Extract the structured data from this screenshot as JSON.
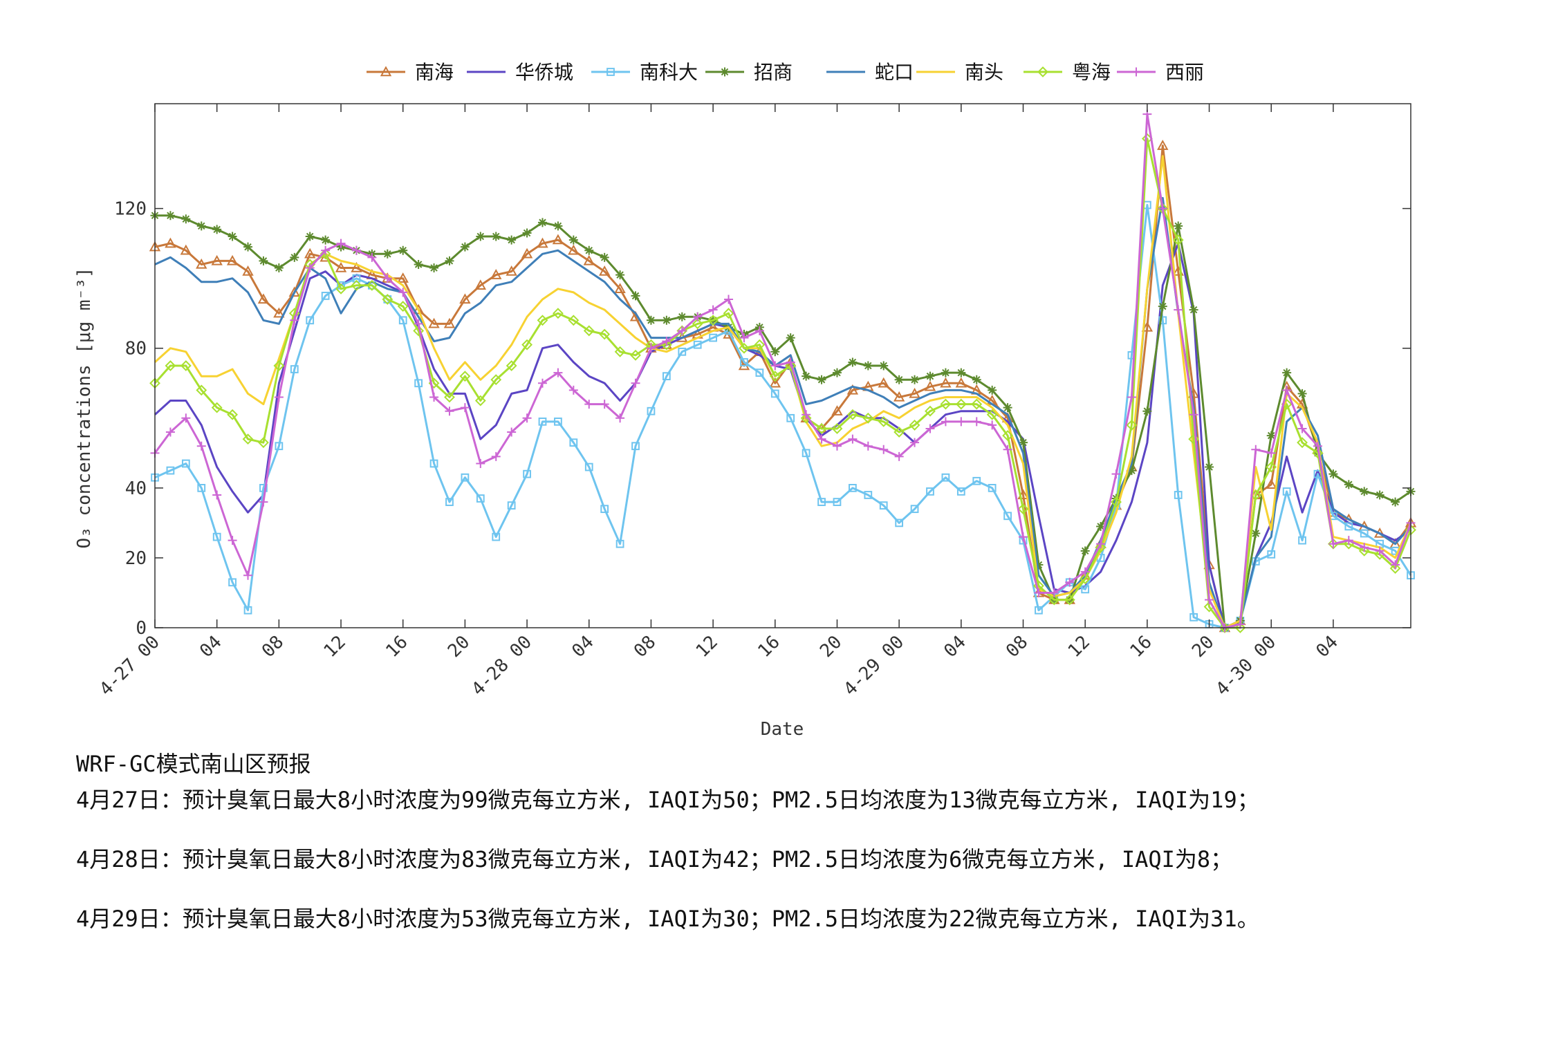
{
  "chart_data": {
    "type": "line",
    "xlabel": "Date",
    "ylabel": "O₃ concentrations [μg m⁻³]",
    "ylim": [
      0,
      150
    ],
    "yticks": [
      0,
      20,
      40,
      80,
      120
    ],
    "xlim": [
      "2021-04-27 00:00",
      "2021-04-30 07:00"
    ],
    "x_step_hours": 1,
    "xtick_labels": [
      {
        "hour": 0,
        "label": "4-27 00"
      },
      {
        "hour": 4,
        "label": "04"
      },
      {
        "hour": 8,
        "label": "08"
      },
      {
        "hour": 12,
        "label": "12"
      },
      {
        "hour": 16,
        "label": "16"
      },
      {
        "hour": 20,
        "label": "20"
      },
      {
        "hour": 24,
        "label": "4-28 00"
      },
      {
        "hour": 28,
        "label": "04"
      },
      {
        "hour": 32,
        "label": "08"
      },
      {
        "hour": 36,
        "label": "12"
      },
      {
        "hour": 40,
        "label": "16"
      },
      {
        "hour": 44,
        "label": "20"
      },
      {
        "hour": 48,
        "label": "4-29 00"
      },
      {
        "hour": 52,
        "label": "04"
      },
      {
        "hour": 56,
        "label": "08"
      },
      {
        "hour": 60,
        "label": "12"
      },
      {
        "hour": 64,
        "label": "16"
      },
      {
        "hour": 68,
        "label": "20"
      },
      {
        "hour": 72,
        "label": "4-30 00"
      },
      {
        "hour": 76,
        "label": "04"
      }
    ],
    "legend_position": "top",
    "grid": false,
    "series": [
      {
        "name": "南海",
        "color": "#c8783a",
        "marker": "triangle",
        "values": [
          109,
          110,
          108,
          104,
          105,
          105,
          102,
          94,
          90,
          96,
          107,
          106,
          103,
          103,
          101,
          100,
          100,
          91,
          87,
          87,
          94,
          98,
          101,
          102,
          107,
          110,
          111,
          108,
          105,
          102,
          97,
          89,
          80,
          81,
          83,
          84,
          86,
          84,
          75,
          79,
          70,
          76,
          60,
          57,
          62,
          68,
          69,
          70,
          66,
          67,
          69,
          70,
          70,
          68,
          65,
          60,
          38,
          10,
          8,
          8,
          15,
          24,
          35,
          46,
          86,
          138,
          102,
          67,
          18,
          0,
          2,
          38,
          41,
          69,
          64,
          51,
          33,
          31,
          29,
          27,
          24,
          30
        ]
      },
      {
        "name": "华侨城",
        "color": "#5b45c4",
        "marker": "none",
        "values": [
          61,
          65,
          65,
          58,
          46,
          39,
          33,
          38,
          70,
          85,
          100,
          102,
          98,
          101,
          100,
          98,
          96,
          86,
          74,
          67,
          67,
          54,
          58,
          67,
          68,
          80,
          81,
          76,
          72,
          70,
          65,
          70,
          79,
          81,
          83,
          85,
          87,
          86,
          80,
          78,
          75,
          74,
          60,
          55,
          58,
          62,
          60,
          60,
          57,
          53,
          57,
          61,
          62,
          62,
          62,
          59,
          54,
          32,
          11,
          10,
          12,
          16,
          25,
          36,
          53,
          98,
          110,
          90,
          18,
          0,
          2,
          20,
          30,
          49,
          33,
          45,
          33,
          30,
          29,
          27,
          25,
          28
        ]
      },
      {
        "name": "南科大",
        "color": "#6ec4ef",
        "marker": "square",
        "values": [
          43,
          45,
          47,
          40,
          26,
          13,
          5,
          40,
          52,
          74,
          88,
          95,
          98,
          100,
          98,
          94,
          88,
          70,
          47,
          36,
          43,
          37,
          26,
          35,
          44,
          59,
          59,
          53,
          46,
          34,
          24,
          52,
          62,
          72,
          79,
          81,
          83,
          85,
          76,
          73,
          67,
          60,
          50,
          36,
          36,
          40,
          38,
          35,
          30,
          34,
          39,
          43,
          39,
          42,
          40,
          32,
          25,
          5,
          9,
          13,
          11,
          20,
          35,
          78,
          121,
          88,
          38,
          3,
          1,
          0,
          2,
          19,
          21,
          39,
          25,
          44,
          32,
          29,
          27,
          24,
          22,
          15
        ]
      },
      {
        "name": "招商",
        "color": "#5d8a2e",
        "marker": "star",
        "values": [
          118,
          118,
          117,
          115,
          114,
          112,
          109,
          105,
          103,
          106,
          112,
          111,
          109,
          108,
          107,
          107,
          108,
          104,
          103,
          105,
          109,
          112,
          112,
          111,
          113,
          116,
          115,
          111,
          108,
          106,
          101,
          95,
          88,
          88,
          89,
          89,
          88,
          86,
          84,
          86,
          79,
          83,
          72,
          71,
          73,
          76,
          75,
          75,
          71,
          71,
          72,
          73,
          73,
          71,
          68,
          63,
          53,
          18,
          8,
          8,
          22,
          29,
          37,
          45,
          62,
          92,
          115,
          91,
          46,
          0,
          2,
          27,
          55,
          73,
          67,
          50,
          44,
          41,
          39,
          38,
          36,
          39
        ]
      },
      {
        "name": "蛇口",
        "color": "#3f7fb8",
        "marker": "none",
        "values": [
          104,
          106,
          103,
          99,
          99,
          100,
          96,
          88,
          87,
          96,
          103,
          100,
          90,
          97,
          99,
          97,
          96,
          89,
          82,
          83,
          90,
          93,
          98,
          99,
          103,
          107,
          108,
          105,
          102,
          99,
          94,
          90,
          83,
          83,
          83,
          85,
          87,
          87,
          80,
          79,
          75,
          78,
          64,
          65,
          67,
          69,
          68,
          66,
          63,
          65,
          67,
          68,
          68,
          67,
          64,
          61,
          50,
          15,
          9,
          10,
          15,
          25,
          37,
          47,
          97,
          123,
          90,
          63,
          13,
          0,
          2,
          20,
          26,
          59,
          63,
          55,
          34,
          31,
          29,
          27,
          24,
          29
        ]
      },
      {
        "name": "南头",
        "color": "#f7d232",
        "marker": "none",
        "values": [
          76,
          80,
          79,
          72,
          72,
          74,
          67,
          64,
          77,
          90,
          104,
          107,
          105,
          104,
          102,
          101,
          98,
          91,
          80,
          71,
          76,
          71,
          75,
          81,
          89,
          94,
          97,
          96,
          93,
          91,
          87,
          83,
          80,
          79,
          81,
          83,
          85,
          86,
          80,
          80,
          72,
          75,
          59,
          52,
          53,
          57,
          59,
          62,
          60,
          63,
          65,
          66,
          66,
          66,
          63,
          58,
          47,
          11,
          9,
          10,
          14,
          22,
          33,
          49,
          97,
          135,
          90,
          50,
          11,
          0,
          2,
          46,
          28,
          67,
          63,
          53,
          26,
          25,
          24,
          23,
          20,
          30
        ]
      },
      {
        "name": "粤海",
        "color": "#a8e030",
        "marker": "diamond",
        "values": [
          70,
          75,
          75,
          68,
          63,
          61,
          54,
          53,
          75,
          90,
          104,
          107,
          97,
          98,
          98,
          94,
          92,
          85,
          70,
          66,
          72,
          65,
          71,
          75,
          81,
          88,
          90,
          88,
          85,
          84,
          79,
          78,
          81,
          81,
          85,
          87,
          88,
          90,
          80,
          81,
          72,
          75,
          60,
          57,
          57,
          61,
          60,
          59,
          56,
          58,
          62,
          64,
          64,
          64,
          61,
          55,
          34,
          12,
          8,
          8,
          14,
          23,
          36,
          58,
          140,
          120,
          111,
          54,
          6,
          0,
          0,
          38,
          46,
          64,
          53,
          50,
          24,
          24,
          22,
          21,
          17,
          28
        ]
      },
      {
        "name": "西丽",
        "color": "#cc66d4",
        "marker": "plus",
        "values": [
          50,
          56,
          60,
          52,
          38,
          25,
          15,
          36,
          66,
          88,
          103,
          108,
          110,
          108,
          106,
          100,
          96,
          87,
          66,
          62,
          63,
          47,
          49,
          56,
          60,
          70,
          73,
          68,
          64,
          64,
          60,
          70,
          80,
          82,
          85,
          89,
          91,
          94,
          83,
          85,
          75,
          76,
          61,
          54,
          52,
          54,
          52,
          51,
          49,
          53,
          57,
          59,
          59,
          59,
          58,
          51,
          26,
          10,
          10,
          13,
          16,
          24,
          44,
          66,
          147,
          120,
          91,
          61,
          8,
          0,
          1,
          51,
          50,
          68,
          57,
          52,
          24,
          25,
          23,
          22,
          18,
          30
        ]
      }
    ]
  },
  "notes": {
    "title": "WRF-GC模式南山区预报",
    "lines": [
      "4月27日：预计臭氧日最大8小时浓度为99微克每立方米, IAQI为50；PM2.5日均浓度为13微克每立方米, IAQI为19；",
      "4月28日：预计臭氧日最大8小时浓度为83微克每立方米, IAQI为42；PM2.5日均浓度为6微克每立方米, IAQI为8；",
      "4月29日：预计臭氧日最大8小时浓度为53微克每立方米, IAQI为30；PM2.5日均浓度为22微克每立方米, IAQI为31。"
    ]
  }
}
